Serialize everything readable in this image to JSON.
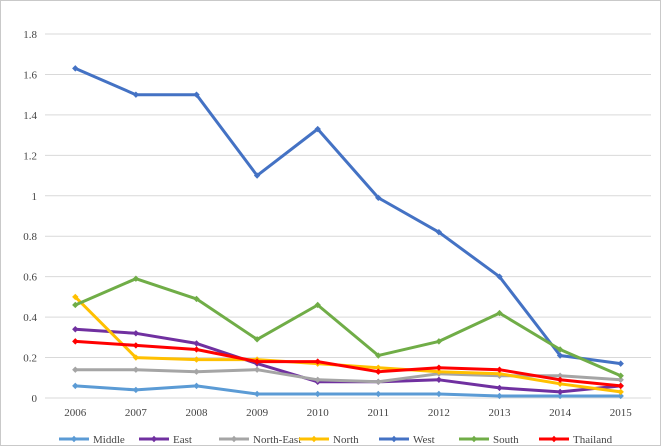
{
  "chart_data": {
    "type": "line",
    "title": "",
    "xlabel": "",
    "ylabel": "",
    "categories": [
      "2006",
      "2007",
      "2008",
      "2009",
      "2010",
      "2011",
      "2012",
      "2013",
      "2014",
      "2015"
    ],
    "ylim": [
      0,
      1.8
    ],
    "yticks": [
      0,
      0.2,
      0.4,
      0.6,
      0.8,
      1,
      1.2,
      1.4,
      1.6,
      1.8
    ],
    "grid": true,
    "legend_position": "bottom",
    "series": [
      {
        "name": "Middle",
        "color": "#5b9bd5",
        "values": [
          0.06,
          0.04,
          0.06,
          0.02,
          0.02,
          0.02,
          0.02,
          0.01,
          0.01,
          0.01
        ]
      },
      {
        "name": "East",
        "color": "#7030a0",
        "values": [
          0.34,
          0.32,
          0.27,
          0.17,
          0.08,
          0.08,
          0.09,
          0.05,
          0.03,
          0.06
        ]
      },
      {
        "name": "North-East",
        "color": "#a5a5a5",
        "values": [
          0.14,
          0.14,
          0.13,
          0.14,
          0.09,
          0.08,
          0.12,
          0.11,
          0.11,
          0.09
        ]
      },
      {
        "name": "North",
        "color": "#ffc000",
        "values": [
          0.5,
          0.2,
          0.19,
          0.19,
          0.17,
          0.15,
          0.13,
          0.12,
          0.07,
          0.03
        ]
      },
      {
        "name": "West",
        "color": "#4472c4",
        "values": [
          1.63,
          1.5,
          1.5,
          1.1,
          1.33,
          0.99,
          0.82,
          0.6,
          0.21,
          0.17
        ]
      },
      {
        "name": "South",
        "color": "#70ad47",
        "values": [
          0.46,
          0.59,
          0.49,
          0.29,
          0.46,
          0.21,
          0.28,
          0.42,
          0.24,
          0.11
        ]
      },
      {
        "name": "Thailand",
        "color": "#ff0000",
        "values": [
          0.28,
          0.26,
          0.24,
          0.18,
          0.18,
          0.13,
          0.15,
          0.14,
          0.09,
          0.06
        ]
      }
    ]
  }
}
